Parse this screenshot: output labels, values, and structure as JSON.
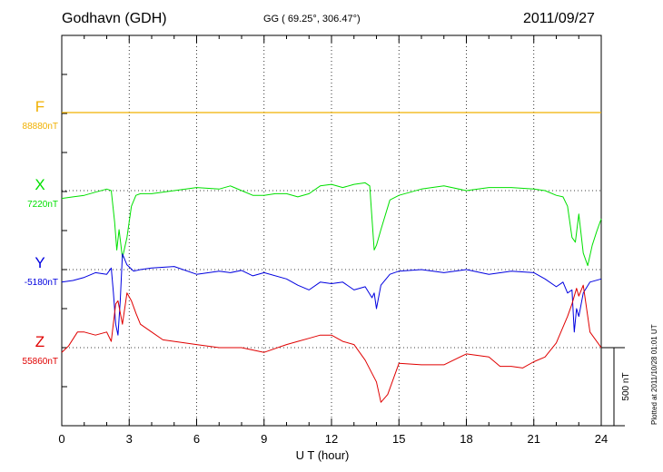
{
  "header": {
    "station": "Godhavn (GDH)",
    "coords": "GG ( 69.25°, 306.47°)",
    "date": "2011/09/27",
    "plotted": "Plotted at 2011/10/28 01:01  UT"
  },
  "chart_data": {
    "type": "line",
    "xlabel": "U T (hour)",
    "xlim": [
      0,
      24
    ],
    "xticks": [
      "0",
      "3",
      "6",
      "9",
      "12",
      "15",
      "18",
      "21",
      "24"
    ],
    "scale_bar": "500 nT",
    "grid": true,
    "series": [
      {
        "name": "F",
        "base_label": "88880nT",
        "color": "#f0b000",
        "x": [
          0,
          24
        ],
        "y": [
          0,
          0
        ]
      },
      {
        "name": "X",
        "base_label": "7220nT",
        "color": "#00e000",
        "x": [
          0,
          0.5,
          1,
          1.5,
          2,
          2.2,
          2.35,
          2.45,
          2.55,
          2.7,
          2.9,
          3.1,
          3.3,
          3.5,
          4,
          5,
          6,
          7,
          7.5,
          8,
          8.5,
          9,
          9.5,
          10,
          10.5,
          11,
          11.5,
          12,
          12.5,
          13,
          13.5,
          13.7,
          13.8,
          13.9,
          14,
          14.2,
          14.6,
          15,
          16,
          17,
          18,
          19,
          20,
          21,
          21.5,
          22,
          22.3,
          22.5,
          22.7,
          22.85,
          23,
          23.2,
          23.4,
          23.6,
          23.8,
          24
        ],
        "y": [
          -50,
          -40,
          -30,
          -10,
          10,
          0,
          -200,
          -380,
          -250,
          -430,
          -300,
          -100,
          -30,
          -20,
          -20,
          0,
          20,
          10,
          30,
          0,
          -30,
          -30,
          -20,
          -20,
          -40,
          -20,
          30,
          40,
          20,
          40,
          50,
          30,
          -180,
          -380,
          -350,
          -250,
          -60,
          -30,
          10,
          30,
          0,
          20,
          20,
          10,
          0,
          -30,
          -40,
          -100,
          -300,
          -330,
          -150,
          -400,
          -480,
          -350,
          -260,
          -180
        ]
      },
      {
        "name": "Y",
        "base_label": "-5180nT",
        "color": "#0000e0",
        "x": [
          0,
          0.5,
          1,
          1.5,
          2,
          2.2,
          2.3,
          2.4,
          2.5,
          2.6,
          2.7,
          2.9,
          3.2,
          3.5,
          4,
          5,
          6,
          7,
          7.5,
          8,
          8.5,
          9,
          10,
          10.5,
          11,
          11.5,
          12,
          12.5,
          13,
          13.5,
          13.8,
          13.9,
          14,
          14.2,
          14.6,
          15,
          16,
          17,
          18,
          19,
          20,
          21,
          21.5,
          22,
          22.3,
          22.5,
          22.7,
          22.8,
          22.9,
          23,
          23.2,
          23.5,
          24
        ],
        "y": [
          -80,
          -70,
          -50,
          -20,
          -30,
          10,
          -150,
          -350,
          -420,
          -200,
          100,
          30,
          -10,
          0,
          10,
          20,
          -30,
          -10,
          -20,
          -5,
          -40,
          -20,
          -60,
          -100,
          -130,
          -80,
          -90,
          -80,
          -130,
          -110,
          -180,
          -150,
          -250,
          -100,
          -30,
          -10,
          0,
          -20,
          0,
          -30,
          -10,
          -20,
          -60,
          -110,
          -80,
          -150,
          -130,
          -400,
          -250,
          -300,
          -150,
          -80,
          -60
        ]
      },
      {
        "name": "Z",
        "base_label": "55860nT",
        "color": "#e00000",
        "x": [
          0,
          0.3,
          0.7,
          1,
          1.5,
          2,
          2.2,
          2.4,
          2.5,
          2.7,
          2.9,
          3.1,
          3.3,
          3.5,
          4,
          4.5,
          5,
          6,
          7,
          8,
          9,
          10,
          10.5,
          11,
          11.5,
          12,
          12.5,
          13,
          13.5,
          14,
          14.2,
          14.5,
          15,
          16,
          17,
          18,
          19,
          19.5,
          20,
          20.5,
          21,
          21.5,
          22,
          22.5,
          22.7,
          22.9,
          23,
          23.2,
          23.5,
          24
        ],
        "y": [
          -30,
          10,
          100,
          100,
          80,
          100,
          40,
          280,
          300,
          150,
          350,
          300,
          220,
          150,
          100,
          50,
          40,
          20,
          0,
          0,
          -30,
          20,
          40,
          60,
          80,
          80,
          40,
          20,
          -80,
          -220,
          -350,
          -300,
          -100,
          -110,
          -110,
          -40,
          -60,
          -120,
          -120,
          -130,
          -90,
          -60,
          30,
          200,
          280,
          380,
          330,
          400,
          100,
          0
        ]
      }
    ]
  }
}
